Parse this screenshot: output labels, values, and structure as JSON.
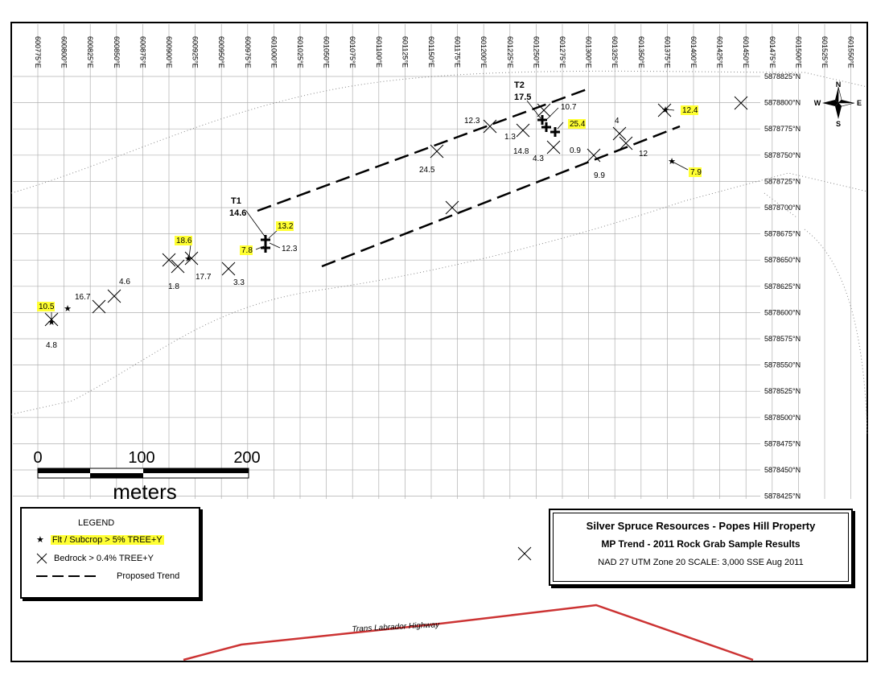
{
  "map": {
    "easting_labels": [
      "600775°E",
      "600800°E",
      "600825°E",
      "600850°E",
      "600875°E",
      "600900°E",
      "600925°E",
      "600950°E",
      "600975°E",
      "601000°E",
      "601025°E",
      "601050°E",
      "601075°E",
      "601100°E",
      "601125°E",
      "601150°E",
      "601175°E",
      "601200°E",
      "601225°E",
      "601250°E",
      "601275°E",
      "601300°E",
      "601325°E",
      "601350°E",
      "601375°E",
      "601400°E",
      "601425°E",
      "601450°E",
      "601475°E",
      "601500°E",
      "601525°E",
      "601550°E"
    ],
    "northing_labels": [
      "5878825°N",
      "5878800°N",
      "5878775°N",
      "5878750°N",
      "5878725°N",
      "5878700°N",
      "5878675°N",
      "5878650°N",
      "5878625°N",
      "5878600°N",
      "5878575°N",
      "5878550°N",
      "5878525°N",
      "5878500°N",
      "5878475°N",
      "5878450°N",
      "5878425°N"
    ],
    "trench_labels": [
      {
        "name": "T1",
        "value": "14.6"
      },
      {
        "name": "T2",
        "value": "17.5"
      }
    ],
    "float_samples": [
      {
        "label": "10.5",
        "highlight": true
      },
      {
        "label": "18.6",
        "highlight": true
      },
      {
        "label": "13.2",
        "highlight": true
      },
      {
        "label": "7.8",
        "highlight": true
      },
      {
        "label": "25.4",
        "highlight": true
      },
      {
        "label": "12.4",
        "highlight": true
      },
      {
        "label": "7.9",
        "highlight": true
      }
    ],
    "bedrock_samples": [
      {
        "label": "4.8"
      },
      {
        "label": "16.7"
      },
      {
        "label": "4.6"
      },
      {
        "label": "1.8"
      },
      {
        "label": "17.7"
      },
      {
        "label": "3.3"
      },
      {
        "label": "12.3"
      },
      {
        "label": "24.5"
      },
      {
        "label": "12.3"
      },
      {
        "label": "1.3"
      },
      {
        "label": "14.8"
      },
      {
        "label": "4.3"
      },
      {
        "label": "10.7"
      },
      {
        "label": "0.9"
      },
      {
        "label": "9.9"
      },
      {
        "label": "4"
      },
      {
        "label": "12"
      }
    ],
    "road_label": "Trans Labrador Highway",
    "compass": {
      "n": "N",
      "s": "S",
      "e": "E",
      "w": "W"
    },
    "colors": {
      "highlight": "#ffff33",
      "road": "#cc3333",
      "grid": "#b0b0b0"
    }
  },
  "scalebar": {
    "ticks": [
      "0",
      "100",
      "200"
    ],
    "unit": "meters"
  },
  "legend": {
    "title": "LEGEND",
    "items": [
      {
        "symbol": "star",
        "label": "Flt / Subcrop > 5% TREE+Y"
      },
      {
        "symbol": "x",
        "label": "Bedrock > 0.4% TREE+Y"
      },
      {
        "symbol": "dash",
        "label": "Proposed Trend"
      }
    ]
  },
  "title_block": {
    "line1": "Silver Spruce Resources - Popes Hill Property",
    "line2": "MP Trend - 2011 Rock Grab Sample Results",
    "line3": "NAD 27 UTM Zone 20  SCALE: 3,000  SSE Aug 2011"
  }
}
